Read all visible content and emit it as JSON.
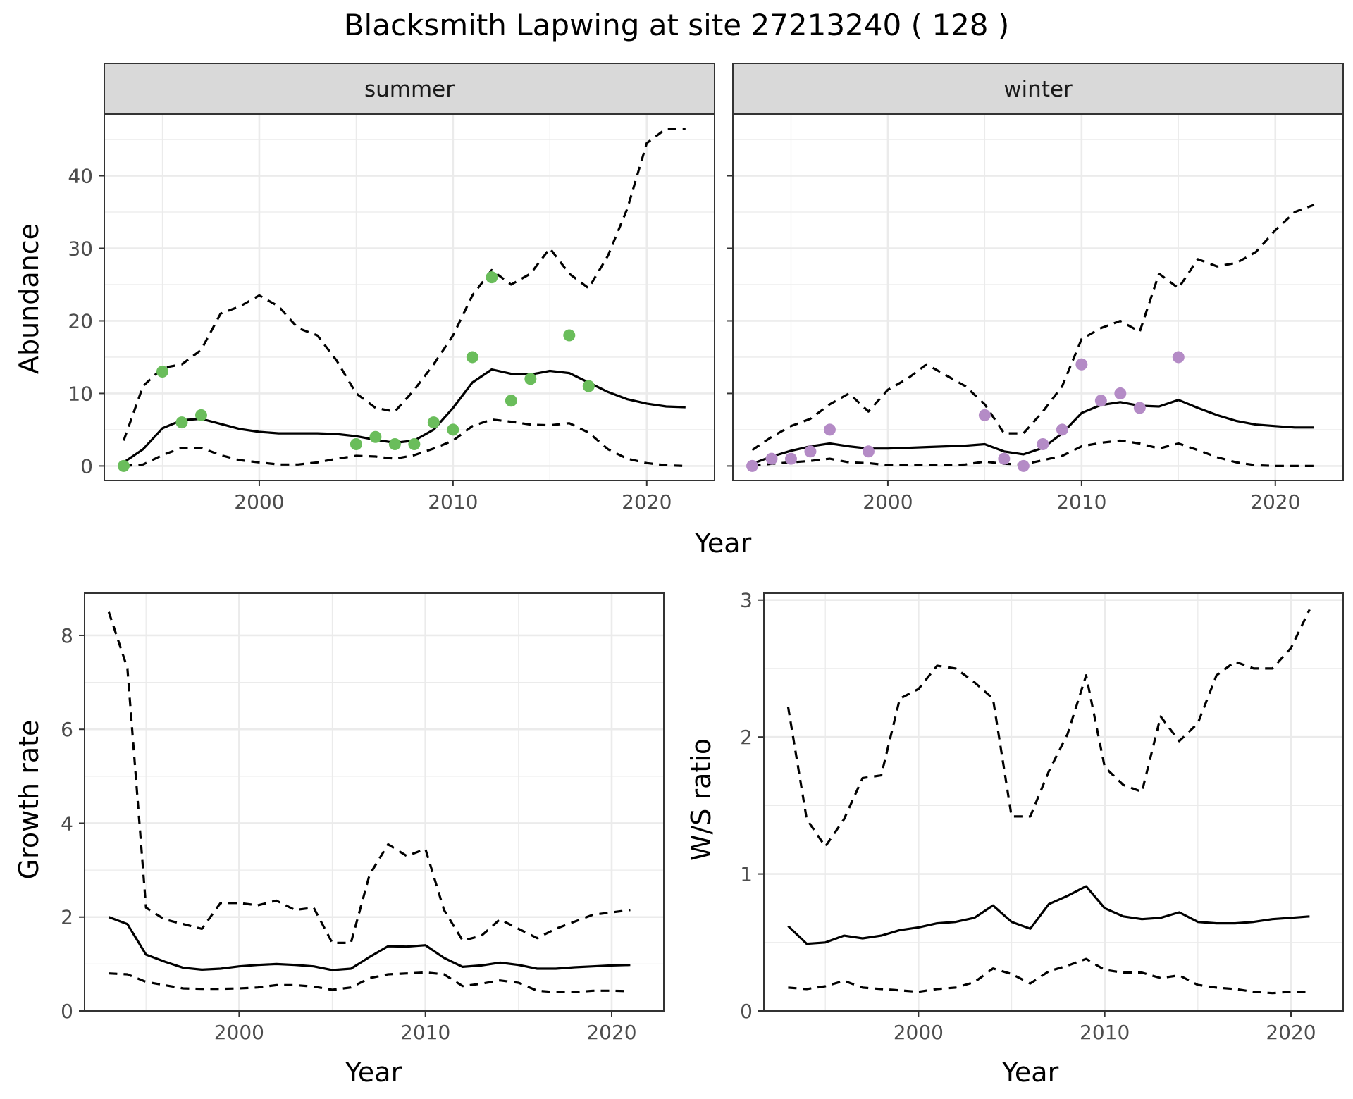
{
  "figure": {
    "title": "Blacksmith Lapwing at site 27213240 ( 128 )"
  },
  "colors": {
    "summer_points": "#6abd5b",
    "winter_points": "#b48bc6",
    "lines": "#000000",
    "strip_background": "#d9d9d9",
    "grid": "#ebebeb"
  },
  "chart_data": [
    {
      "type": "line",
      "panel": "summer",
      "strip_label": "summer",
      "xlabel": "Year",
      "ylabel": "Abundance",
      "xlim": [
        1992,
        2023.5
      ],
      "ylim": [
        -2,
        48.5
      ],
      "x_ticks": [
        2000,
        2010,
        2020
      ],
      "y_ticks": [
        0,
        10,
        20,
        30,
        40
      ],
      "grid": true,
      "series": [
        {
          "style": "dashed",
          "x": [
            1993,
            1994,
            1995,
            1996,
            1997,
            1998,
            1999,
            2000,
            2001,
            2002,
            2003,
            2004,
            2005,
            2006,
            2007,
            2008,
            2009,
            2010,
            2011,
            2012,
            2013,
            2014,
            2015,
            2016,
            2017,
            2018,
            2019,
            2020,
            2021,
            2022
          ],
          "y": [
            3.5,
            11,
            13.5,
            14,
            16,
            21,
            22,
            23.5,
            22,
            19,
            18,
            14.5,
            10,
            8,
            7.5,
            10.5,
            14,
            18,
            23.5,
            27,
            25,
            26.5,
            30,
            26.5,
            24.5,
            29,
            35.5,
            44.5,
            46.5,
            46.5
          ]
        },
        {
          "style": "solid",
          "x": [
            1993,
            1994,
            1995,
            1996,
            1997,
            1998,
            1999,
            2000,
            2001,
            2002,
            2003,
            2004,
            2005,
            2006,
            2007,
            2008,
            2009,
            2010,
            2011,
            2012,
            2013,
            2014,
            2015,
            2016,
            2017,
            2018,
            2019,
            2020,
            2021,
            2022
          ],
          "y": [
            0.5,
            2.3,
            5.2,
            6.3,
            6.5,
            5.8,
            5.1,
            4.7,
            4.5,
            4.5,
            4.5,
            4.4,
            4.1,
            3.6,
            3.2,
            3.5,
            5,
            8,
            11.5,
            13.3,
            12.7,
            12.6,
            13.1,
            12.8,
            11.5,
            10.2,
            9.2,
            8.6,
            8.2,
            8.1
          ]
        },
        {
          "style": "dashed",
          "x": [
            1993,
            1994,
            1995,
            1996,
            1997,
            1998,
            1999,
            2000,
            2001,
            2002,
            2003,
            2004,
            2005,
            2006,
            2007,
            2008,
            2009,
            2010,
            2011,
            2012,
            2013,
            2014,
            2015,
            2016,
            2017,
            2018,
            2019,
            2020,
            2021,
            2022
          ],
          "y": [
            0,
            0.2,
            1.5,
            2.5,
            2.5,
            1.5,
            0.8,
            0.5,
            0.2,
            0.2,
            0.5,
            1,
            1.4,
            1.3,
            1,
            1.5,
            2.4,
            3.5,
            5.5,
            6.4,
            6.1,
            5.7,
            5.6,
            5.9,
            4.6,
            2.3,
            1,
            0.4,
            0.1,
            0
          ]
        }
      ],
      "points": {
        "x": [
          1993,
          1995,
          1996,
          1997,
          2005,
          2006,
          2007,
          2008,
          2009,
          2010,
          2011,
          2012,
          2013,
          2014,
          2016,
          2017
        ],
        "y": [
          0,
          13,
          6,
          7,
          3,
          4,
          3,
          3,
          6,
          5,
          15,
          26,
          9,
          12,
          18,
          11
        ]
      }
    },
    {
      "type": "line",
      "panel": "winter",
      "strip_label": "winter",
      "xlabel": "Year",
      "ylabel": "",
      "xlim": [
        1992,
        2023.5
      ],
      "ylim": [
        -2,
        48.5
      ],
      "x_ticks": [
        2000,
        2010,
        2020
      ],
      "y_ticks": [
        0,
        10,
        20,
        30,
        40
      ],
      "grid": true,
      "series": [
        {
          "style": "dashed",
          "x": [
            1993,
            1994,
            1995,
            1996,
            1997,
            1998,
            1999,
            2000,
            2001,
            2002,
            2003,
            2004,
            2005,
            2006,
            2007,
            2008,
            2009,
            2010,
            2011,
            2012,
            2013,
            2014,
            2015,
            2016,
            2017,
            2018,
            2019,
            2020,
            2021,
            2022
          ],
          "y": [
            2.2,
            4,
            5.5,
            6.5,
            8.5,
            10,
            7.5,
            10.5,
            12,
            14,
            12.5,
            11,
            8.5,
            4.5,
            4.5,
            7.5,
            11,
            17.5,
            19,
            20,
            18.5,
            26.5,
            24.5,
            28.5,
            27.5,
            28,
            29.5,
            32.5,
            35,
            36
          ]
        },
        {
          "style": "solid",
          "x": [
            1993,
            1994,
            1995,
            1996,
            1997,
            1998,
            1999,
            2000,
            2001,
            2002,
            2003,
            2004,
            2005,
            2006,
            2007,
            2008,
            2009,
            2010,
            2011,
            2012,
            2013,
            2014,
            2015,
            2016,
            2017,
            2018,
            2019,
            2020,
            2021,
            2022
          ],
          "y": [
            0.3,
            1.3,
            2.1,
            2.7,
            3.1,
            2.7,
            2.4,
            2.4,
            2.5,
            2.6,
            2.7,
            2.8,
            3,
            2,
            1.6,
            2.5,
            4.5,
            7.3,
            8.4,
            8.8,
            8.3,
            8.2,
            9.1,
            8,
            7,
            6.2,
            5.7,
            5.5,
            5.3,
            5.3
          ]
        },
        {
          "style": "dashed",
          "x": [
            1993,
            1994,
            1995,
            1996,
            1997,
            1998,
            1999,
            2000,
            2001,
            2002,
            2003,
            2004,
            2005,
            2006,
            2007,
            2008,
            2009,
            2010,
            2011,
            2012,
            2013,
            2014,
            2015,
            2016,
            2017,
            2018,
            2019,
            2020,
            2021,
            2022
          ],
          "y": [
            0,
            0.3,
            0.5,
            0.7,
            1,
            0.5,
            0.4,
            0.1,
            0.1,
            0.1,
            0.1,
            0.2,
            0.6,
            0.3,
            0.2,
            0.8,
            1.4,
            2.7,
            3.2,
            3.5,
            3.1,
            2.4,
            3.1,
            2.2,
            1.2,
            0.5,
            0.1,
            0,
            0,
            0
          ]
        }
      ],
      "points": {
        "x": [
          1993,
          1994,
          1995,
          1996,
          1997,
          1999,
          2005,
          2006,
          2007,
          2008,
          2009,
          2010,
          2011,
          2012,
          2013,
          2015
        ],
        "y": [
          0,
          1,
          1,
          2,
          5,
          2,
          7,
          1,
          0,
          3,
          5,
          14,
          9,
          10,
          8,
          15
        ]
      }
    },
    {
      "type": "line",
      "panel": "growth",
      "xlabel": "Year",
      "ylabel": "Growth rate",
      "xlim": [
        1991.7,
        2022.8
      ],
      "ylim": [
        0,
        8.9
      ],
      "x_ticks": [
        2000,
        2010,
        2020
      ],
      "y_ticks": [
        0,
        2,
        4,
        6,
        8
      ],
      "grid": true,
      "series": [
        {
          "style": "dashed",
          "x": [
            1993,
            1994,
            1995,
            1996,
            1997,
            1998,
            1999,
            2000,
            2001,
            2002,
            2003,
            2004,
            2005,
            2006,
            2007,
            2008,
            2009,
            2010,
            2011,
            2012,
            2013,
            2014,
            2015,
            2016,
            2017,
            2018,
            2019,
            2020,
            2021
          ],
          "y": [
            8.5,
            7.3,
            2.2,
            1.95,
            1.85,
            1.75,
            2.3,
            2.3,
            2.25,
            2.35,
            2.15,
            2.2,
            1.45,
            1.45,
            2.9,
            3.55,
            3.3,
            3.45,
            2.15,
            1.5,
            1.6,
            1.95,
            1.75,
            1.55,
            1.75,
            1.9,
            2.05,
            2.1,
            2.15
          ]
        },
        {
          "style": "solid",
          "x": [
            1993,
            1994,
            1995,
            1996,
            1997,
            1998,
            1999,
            2000,
            2001,
            2002,
            2003,
            2004,
            2005,
            2006,
            2007,
            2008,
            2009,
            2010,
            2011,
            2012,
            2013,
            2014,
            2015,
            2016,
            2017,
            2018,
            2019,
            2020,
            2021
          ],
          "y": [
            2,
            1.85,
            1.2,
            1.05,
            0.92,
            0.88,
            0.9,
            0.95,
            0.98,
            1,
            0.98,
            0.95,
            0.87,
            0.9,
            1.15,
            1.38,
            1.37,
            1.4,
            1.13,
            0.94,
            0.97,
            1.03,
            0.98,
            0.9,
            0.9,
            0.93,
            0.95,
            0.97,
            0.98
          ]
        },
        {
          "style": "dashed",
          "x": [
            1993,
            1994,
            1995,
            1996,
            1997,
            1998,
            1999,
            2000,
            2001,
            2002,
            2003,
            2004,
            2005,
            2006,
            2007,
            2008,
            2009,
            2010,
            2011,
            2012,
            2013,
            2014,
            2015,
            2016,
            2017,
            2018,
            2019,
            2020,
            2021
          ],
          "y": [
            0.8,
            0.78,
            0.62,
            0.55,
            0.48,
            0.47,
            0.47,
            0.48,
            0.5,
            0.55,
            0.55,
            0.52,
            0.45,
            0.5,
            0.7,
            0.78,
            0.8,
            0.82,
            0.78,
            0.53,
            0.58,
            0.65,
            0.6,
            0.43,
            0.4,
            0.4,
            0.43,
            0.43,
            0.42
          ]
        }
      ]
    },
    {
      "type": "line",
      "panel": "ratio",
      "xlabel": "Year",
      "ylabel": "W/S ratio",
      "xlim": [
        1991.7,
        2022.8
      ],
      "ylim": [
        0,
        3.05
      ],
      "x_ticks": [
        2000,
        2010,
        2020
      ],
      "y_ticks": [
        0,
        1,
        2,
        3
      ],
      "grid": true,
      "series": [
        {
          "style": "dashed",
          "x": [
            1993,
            1994,
            1995,
            1996,
            1997,
            1998,
            1999,
            2000,
            2001,
            2002,
            2003,
            2004,
            2005,
            2006,
            2007,
            2008,
            2009,
            2010,
            2011,
            2012,
            2013,
            2014,
            2015,
            2016,
            2017,
            2018,
            2019,
            2020,
            2021
          ],
          "y": [
            2.22,
            1.4,
            1.2,
            1.4,
            1.7,
            1.72,
            2.28,
            2.35,
            2.52,
            2.5,
            2.4,
            2.28,
            1.42,
            1.42,
            1.75,
            2.02,
            2.45,
            1.78,
            1.65,
            1.6,
            2.15,
            1.97,
            2.1,
            2.45,
            2.55,
            2.5,
            2.5,
            2.65,
            2.93
          ]
        },
        {
          "style": "solid",
          "x": [
            1993,
            1994,
            1995,
            1996,
            1997,
            1998,
            1999,
            2000,
            2001,
            2002,
            2003,
            2004,
            2005,
            2006,
            2007,
            2008,
            2009,
            2010,
            2011,
            2012,
            2013,
            2014,
            2015,
            2016,
            2017,
            2018,
            2019,
            2020,
            2021
          ],
          "y": [
            0.62,
            0.49,
            0.5,
            0.55,
            0.53,
            0.55,
            0.59,
            0.61,
            0.64,
            0.65,
            0.68,
            0.77,
            0.65,
            0.6,
            0.78,
            0.84,
            0.91,
            0.75,
            0.69,
            0.67,
            0.68,
            0.72,
            0.65,
            0.64,
            0.64,
            0.65,
            0.67,
            0.68,
            0.69
          ]
        },
        {
          "style": "dashed",
          "x": [
            1993,
            1994,
            1995,
            1996,
            1997,
            1998,
            1999,
            2000,
            2001,
            2002,
            2003,
            2004,
            2005,
            2006,
            2007,
            2008,
            2009,
            2010,
            2011,
            2012,
            2013,
            2014,
            2015,
            2016,
            2017,
            2018,
            2019,
            2020,
            2021
          ],
          "y": [
            0.17,
            0.16,
            0.18,
            0.22,
            0.17,
            0.16,
            0.15,
            0.14,
            0.16,
            0.17,
            0.21,
            0.31,
            0.27,
            0.2,
            0.29,
            0.33,
            0.38,
            0.3,
            0.28,
            0.28,
            0.24,
            0.26,
            0.19,
            0.17,
            0.16,
            0.14,
            0.13,
            0.14,
            0.14
          ]
        }
      ]
    }
  ]
}
